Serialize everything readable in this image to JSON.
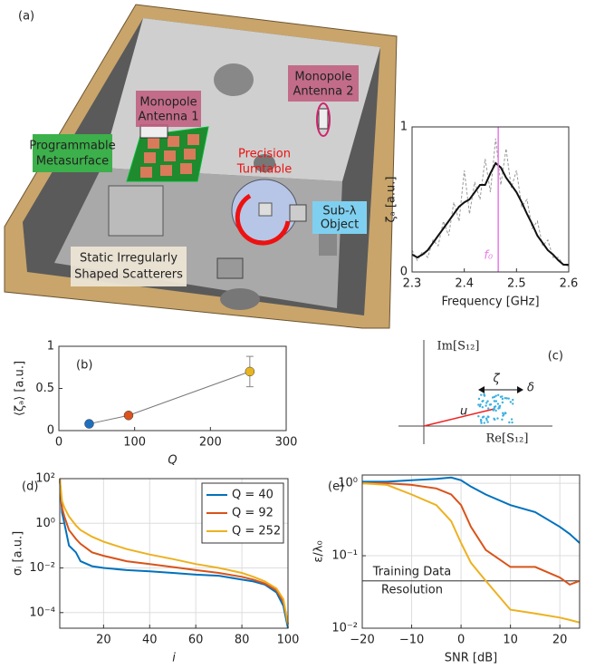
{
  "illustration": {
    "panel_label": "(a)",
    "antenna_2": [
      "Monopole",
      "Antenna 2"
    ],
    "antenna_1": [
      "Monopole",
      "Antenna 1"
    ],
    "metasurface": [
      "Programmable",
      "Metasurface"
    ],
    "turntable": [
      "Precision",
      "Turntable"
    ],
    "object": [
      "Sub-λ",
      "Object"
    ],
    "scatterers": [
      "Static Irregularly",
      "Shaped Scatterers"
    ]
  },
  "diagram": {
    "panel_label": "(c)",
    "y_axis": "Im[S₁₂]",
    "x_axis": "Re[S₁₂]",
    "zeta": "ζ",
    "delta": "δ",
    "u": "u"
  },
  "chart_data": [
    {
      "type": "line",
      "xlabel": "Frequency [GHz]",
      "ylabel": "ζₐ [a.u.]",
      "x": [
        2.3,
        2.31,
        2.32,
        2.33,
        2.34,
        2.35,
        2.36,
        2.37,
        2.38,
        2.39,
        2.4,
        2.41,
        2.42,
        2.43,
        2.44,
        2.45,
        2.46,
        2.47,
        2.48,
        2.49,
        2.5,
        2.51,
        2.52,
        2.53,
        2.54,
        2.55,
        2.56,
        2.57,
        2.58,
        2.59,
        2.6
      ],
      "series": [
        {
          "color": "#999999",
          "style": "dashed",
          "values": [
            0.15,
            0.08,
            0.14,
            0.1,
            0.22,
            0.18,
            0.35,
            0.25,
            0.48,
            0.35,
            0.7,
            0.4,
            0.62,
            0.5,
            0.78,
            0.55,
            0.92,
            0.6,
            0.85,
            0.58,
            0.7,
            0.45,
            0.5,
            0.3,
            0.35,
            0.18,
            0.22,
            0.1,
            0.1,
            0.05,
            0.04
          ]
        },
        {
          "color": "#111111",
          "style": "solid",
          "values": [
            0.12,
            0.1,
            0.12,
            0.15,
            0.2,
            0.25,
            0.3,
            0.35,
            0.4,
            0.45,
            0.48,
            0.5,
            0.55,
            0.6,
            0.6,
            0.68,
            0.75,
            0.72,
            0.65,
            0.6,
            0.55,
            0.48,
            0.4,
            0.33,
            0.25,
            0.2,
            0.15,
            0.12,
            0.08,
            0.05,
            0.05
          ]
        }
      ],
      "vline": {
        "value": 2.465,
        "label": "f₀",
        "color": "#e879e8"
      },
      "xlim": [
        2.3,
        2.6
      ],
      "xticks": [
        2.3,
        2.4,
        2.5,
        2.6
      ],
      "ylim": [
        0,
        1
      ],
      "yticks": [
        0,
        1
      ],
      "grid": false
    },
    {
      "type": "scatter",
      "panel_label": "(b)",
      "xlabel": "Q",
      "ylabel": "⟨ζₐ⟩ [a.u.]",
      "x": [
        40,
        92,
        252
      ],
      "values": [
        0.08,
        0.18,
        0.7
      ],
      "errors": [
        null,
        null,
        0.18
      ],
      "colors": [
        "#1f6fbf",
        "#d9541e",
        "#e8b520"
      ],
      "line_color": "#777777",
      "xlim": [
        0,
        300
      ],
      "xticks": [
        0,
        100,
        200,
        300
      ],
      "ylim": [
        0,
        1
      ],
      "yticks": [
        0,
        0.5,
        1
      ],
      "grid": false
    },
    {
      "type": "line",
      "panel_label": "(d)",
      "xlabel": "i",
      "ylabel": "σᵢ [a.u.]",
      "yscale": "log",
      "legend": "upper right",
      "x": [
        1,
        2,
        3,
        5,
        8,
        10,
        15,
        20,
        30,
        40,
        50,
        60,
        70,
        80,
        85,
        90,
        95,
        98,
        100
      ],
      "series": [
        {
          "name": "Q = 40",
          "color": "#0072bd",
          "values": [
            100,
            3,
            1,
            0.1,
            0.05,
            0.02,
            0.012,
            0.01,
            0.008,
            0.007,
            0.006,
            0.005,
            0.0045,
            0.003,
            0.0025,
            0.0018,
            0.0008,
            0.0002,
            2e-05
          ]
        },
        {
          "name": "Q = 92",
          "color": "#d95319",
          "values": [
            100,
            5,
            2,
            0.5,
            0.2,
            0.12,
            0.05,
            0.035,
            0.02,
            0.015,
            0.011,
            0.008,
            0.006,
            0.004,
            0.003,
            0.002,
            0.001,
            0.0003,
            3e-05
          ]
        },
        {
          "name": "Q = 252",
          "color": "#edb120",
          "values": [
            100,
            10,
            5,
            2,
            0.8,
            0.5,
            0.25,
            0.15,
            0.07,
            0.04,
            0.025,
            0.015,
            0.01,
            0.006,
            0.004,
            0.0025,
            0.0012,
            0.0004,
            3e-05
          ]
        }
      ],
      "xlim": [
        1,
        100
      ],
      "xticks": [
        20,
        40,
        60,
        80,
        100
      ],
      "ylim": [
        2e-05,
        100
      ],
      "yticks": [
        {
          "value": 0.0001,
          "label": "10⁻⁴"
        },
        {
          "value": 0.01,
          "label": "10⁻²"
        },
        {
          "value": 1,
          "label": "10⁰"
        },
        {
          "value": 100,
          "label": "10²"
        }
      ],
      "grid": true
    },
    {
      "type": "line",
      "panel_label": "(e)",
      "xlabel": "SNR [dB]",
      "ylabel": "ε/λ₀",
      "yscale": "log",
      "x": [
        -20,
        -15,
        -10,
        -5,
        -2,
        0,
        2,
        5,
        10,
        15,
        20,
        22,
        24
      ],
      "series": [
        {
          "name": "Q = 40",
          "color": "#0072bd",
          "values": [
            1.05,
            1.05,
            1.1,
            1.15,
            1.2,
            1.1,
            0.9,
            0.7,
            0.5,
            0.4,
            0.25,
            0.2,
            0.15
          ]
        },
        {
          "name": "Q = 92",
          "color": "#d95319",
          "values": [
            1.0,
            1.0,
            0.95,
            0.85,
            0.7,
            0.5,
            0.25,
            0.12,
            0.07,
            0.07,
            0.05,
            0.04,
            0.045
          ]
        },
        {
          "name": "Q = 252",
          "color": "#edb120",
          "values": [
            1.0,
            0.95,
            0.7,
            0.5,
            0.3,
            0.15,
            0.08,
            0.045,
            0.018,
            0.016,
            0.014,
            0.013,
            0.012
          ]
        }
      ],
      "hline": {
        "value": 0.045,
        "label": [
          "Training Data",
          "Resolution"
        ],
        "color": "#555555"
      },
      "xlim": [
        -20,
        24
      ],
      "xticks": [
        {
          "value": -20,
          "label": "−20"
        },
        {
          "value": -10,
          "label": "−10"
        },
        0,
        10,
        20
      ],
      "ylim": [
        0.01,
        1.3
      ],
      "yticks": [
        {
          "value": 0.01,
          "label": "10⁻²"
        },
        {
          "value": 0.1,
          "label": "10⁻¹"
        },
        {
          "value": 1,
          "label": "10⁰"
        }
      ],
      "grid": true
    }
  ]
}
